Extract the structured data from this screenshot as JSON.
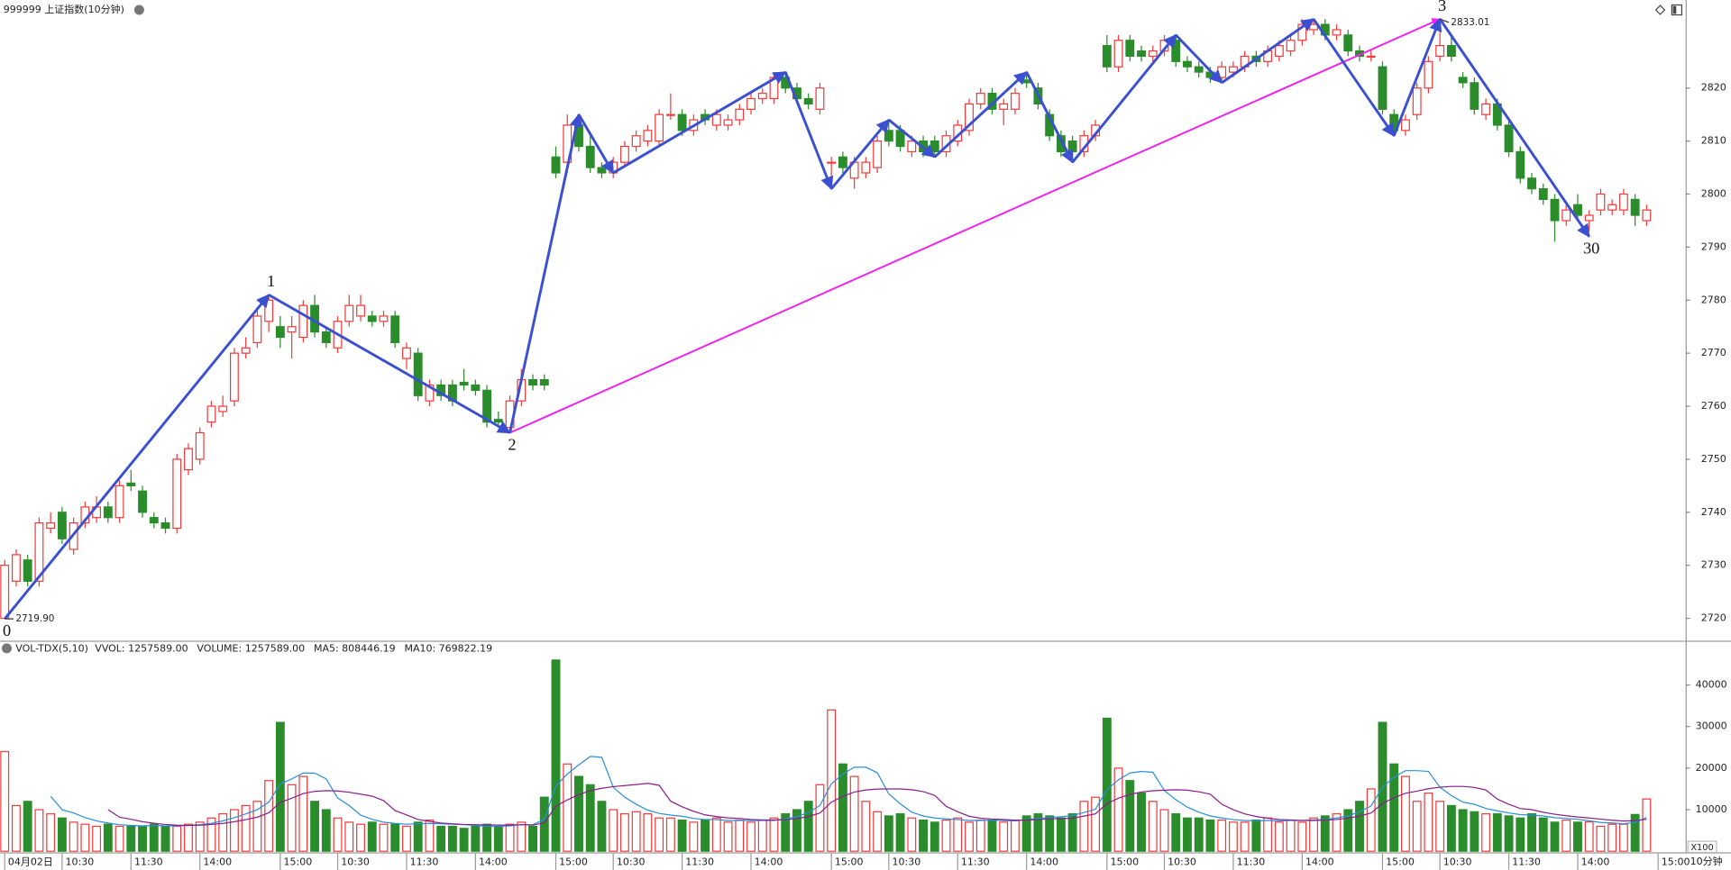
{
  "chart_data": [
    {
      "type": "candlestick",
      "title": "999999 上证指数(10分钟)",
      "up_color": "#f03c3c",
      "down_color": "#2a8c2a",
      "xlim": [
        -0.4,
        146.4
      ],
      "ylim": [
        2716,
        2836.6
      ],
      "yticks": [
        2720,
        2730,
        2740,
        2750,
        2760,
        2770,
        2780,
        2790,
        2800,
        2810,
        2820
      ],
      "ohlc": [
        [
          2720,
          2731,
          2719.9,
          2730
        ],
        [
          2727,
          2733,
          2726,
          2732
        ],
        [
          2731,
          2732,
          2726,
          2727
        ],
        [
          2727,
          2739,
          2726,
          2738
        ],
        [
          2737,
          2740,
          2736,
          2738
        ],
        [
          2740,
          2741,
          2734,
          2735
        ],
        [
          2733,
          2739,
          2732,
          2738
        ],
        [
          2738,
          2742,
          2737,
          2741
        ],
        [
          2739,
          2743,
          2738,
          2741
        ],
        [
          2741,
          2742,
          2738,
          2739
        ],
        [
          2739,
          2746,
          2738,
          2745
        ],
        [
          2745.5,
          2748,
          2744,
          2745
        ],
        [
          2744,
          2745,
          2739,
          2740
        ],
        [
          2739,
          2740,
          2737,
          2738
        ],
        [
          2738,
          2739,
          2736,
          2737
        ],
        [
          2737,
          2751,
          2736,
          2750
        ],
        [
          2748,
          2753,
          2747,
          2752
        ],
        [
          2750,
          2756,
          2749,
          2755
        ],
        [
          2757,
          2761,
          2756,
          2760
        ],
        [
          2759,
          2762,
          2758,
          2760
        ],
        [
          2761,
          2771,
          2760,
          2770
        ],
        [
          2770,
          2773,
          2769,
          2771
        ],
        [
          2772,
          2778,
          2771,
          2777
        ],
        [
          2776,
          2781,
          2774,
          2780
        ],
        [
          2775,
          2777,
          2771,
          2773
        ],
        [
          2774,
          2777,
          2769,
          2775
        ],
        [
          2773,
          2780,
          2772,
          2779
        ],
        [
          2779,
          2781,
          2773,
          2774
        ],
        [
          2774,
          2775,
          2771,
          2772
        ],
        [
          2771,
          2777,
          2770,
          2776
        ],
        [
          2776,
          2781,
          2775,
          2779
        ],
        [
          2777,
          2781,
          2776,
          2779
        ],
        [
          2777,
          2778,
          2775,
          2776
        ],
        [
          2776,
          2778,
          2775,
          2777
        ],
        [
          2777,
          2778,
          2771,
          2772
        ],
        [
          2769,
          2772,
          2767,
          2771
        ],
        [
          2770,
          2771,
          2761,
          2762
        ],
        [
          2761,
          2765,
          2760,
          2764
        ],
        [
          2764,
          2765,
          2761,
          2762
        ],
        [
          2764,
          2765,
          2760,
          2761
        ],
        [
          2764.5,
          2767,
          2763,
          2764
        ],
        [
          2764,
          2765,
          2762,
          2763
        ],
        [
          2763,
          2764,
          2756,
          2757
        ],
        [
          2757.5,
          2759,
          2756,
          2757
        ],
        [
          2756,
          2762,
          2755,
          2761
        ],
        [
          2761,
          2767,
          2760,
          2765
        ],
        [
          2765,
          2766,
          2763,
          2764
        ],
        [
          2765,
          2766,
          2763,
          2764
        ],
        [
          2807,
          2809,
          2803,
          2804
        ],
        [
          2806,
          2815,
          2804,
          2813
        ],
        [
          2813,
          2815,
          2808,
          2809
        ],
        [
          2809,
          2811,
          2804,
          2805
        ],
        [
          2805,
          2806,
          2803,
          2804
        ],
        [
          2804,
          2807,
          2803,
          2806
        ],
        [
          2806,
          2810,
          2805,
          2809
        ],
        [
          2809,
          2812,
          2808,
          2811
        ],
        [
          2810,
          2813,
          2809,
          2812
        ],
        [
          2810,
          2816,
          2809,
          2815
        ],
        [
          2815,
          2819,
          2814,
          2815
        ],
        [
          2815,
          2816,
          2811,
          2812
        ],
        [
          2812,
          2815,
          2811,
          2814
        ],
        [
          2815,
          2816,
          2813,
          2814
        ],
        [
          2813,
          2816,
          2812,
          2815
        ],
        [
          2813,
          2815,
          2812,
          2814
        ],
        [
          2814,
          2817,
          2813,
          2816
        ],
        [
          2816,
          2819,
          2815,
          2818
        ],
        [
          2818,
          2820,
          2817,
          2819
        ],
        [
          2818,
          2823,
          2817,
          2822
        ],
        [
          2822,
          2823,
          2819,
          2820
        ],
        [
          2820,
          2821,
          2817,
          2818
        ],
        [
          2818,
          2819,
          2816,
          2817
        ],
        [
          2816,
          2821,
          2815,
          2820
        ],
        [
          2806,
          2807,
          2801,
          2806
        ],
        [
          2807,
          2808,
          2804,
          2805
        ],
        [
          2803,
          2807,
          2801,
          2806
        ],
        [
          2804,
          2807,
          2803,
          2806
        ],
        [
          2805,
          2811,
          2804,
          2810
        ],
        [
          2812,
          2814,
          2809,
          2810
        ],
        [
          2812,
          2813,
          2808,
          2809
        ],
        [
          2808,
          2811,
          2807,
          2810
        ],
        [
          2810,
          2811,
          2807,
          2808
        ],
        [
          2810,
          2811,
          2807,
          2808
        ],
        [
          2808,
          2812,
          2807,
          2811
        ],
        [
          2810,
          2814,
          2809,
          2813
        ],
        [
          2812,
          2818,
          2811,
          2817
        ],
        [
          2817,
          2820,
          2816,
          2819
        ],
        [
          2819,
          2820,
          2815,
          2816
        ],
        [
          2816,
          2818,
          2813,
          2817
        ],
        [
          2816,
          2820,
          2815,
          2819
        ],
        [
          2821.5,
          2823,
          2820,
          2821
        ],
        [
          2820,
          2821,
          2816,
          2817
        ],
        [
          2815,
          2816,
          2810,
          2811
        ],
        [
          2811,
          2812,
          2807,
          2808
        ],
        [
          2810,
          2811,
          2806,
          2808
        ],
        [
          2808,
          2812,
          2807,
          2811
        ],
        [
          2811,
          2814,
          2810,
          2813
        ],
        [
          2828,
          2830,
          2823,
          2824
        ],
        [
          2824,
          2830,
          2823,
          2829
        ],
        [
          2829,
          2830,
          2825,
          2826
        ],
        [
          2827,
          2828,
          2825,
          2826
        ],
        [
          2826,
          2828,
          2825,
          2827
        ],
        [
          2827,
          2830,
          2826,
          2829
        ],
        [
          2829,
          2830,
          2824,
          2825
        ],
        [
          2825,
          2826,
          2823,
          2824
        ],
        [
          2824,
          2825,
          2822,
          2823
        ],
        [
          2823,
          2824,
          2821,
          2822
        ],
        [
          2822,
          2825,
          2821,
          2824
        ],
        [
          2823,
          2825,
          2822,
          2824
        ],
        [
          2824,
          2827,
          2823,
          2826
        ],
        [
          2826,
          2827,
          2824,
          2825
        ],
        [
          2825,
          2828,
          2824,
          2827
        ],
        [
          2826,
          2829,
          2825,
          2828
        ],
        [
          2827,
          2830,
          2826,
          2829
        ],
        [
          2829,
          2833,
          2828,
          2832
        ],
        [
          2831,
          2833,
          2830,
          2832
        ],
        [
          2832,
          2833,
          2829,
          2830
        ],
        [
          2830,
          2832,
          2829,
          2831
        ],
        [
          2830,
          2831,
          2826,
          2827
        ],
        [
          2827,
          2828,
          2825,
          2826
        ],
        [
          2826,
          2827,
          2825,
          2826
        ],
        [
          2824,
          2825,
          2815,
          2816
        ],
        [
          2815,
          2816,
          2811,
          2812
        ],
        [
          2812,
          2815,
          2811,
          2814
        ],
        [
          2815,
          2821,
          2814,
          2820
        ],
        [
          2820,
          2826,
          2819,
          2825
        ],
        [
          2826,
          2833.01,
          2825,
          2828
        ],
        [
          2828,
          2830,
          2825,
          2826
        ],
        [
          2822,
          2823,
          2820,
          2821
        ],
        [
          2821,
          2822,
          2815,
          2816
        ],
        [
          2815,
          2818,
          2814,
          2817
        ],
        [
          2817,
          2818,
          2812,
          2813
        ],
        [
          2813,
          2814,
          2807,
          2808
        ],
        [
          2808,
          2809,
          2802,
          2803
        ],
        [
          2803,
          2804,
          2800,
          2801
        ],
        [
          2801,
          2802,
          2798,
          2799
        ],
        [
          2799,
          2800,
          2791,
          2795
        ],
        [
          2795,
          2798,
          2794,
          2797
        ],
        [
          2798,
          2800,
          2795,
          2796
        ],
        [
          2795,
          2797,
          2793,
          2796
        ],
        [
          2797,
          2801,
          2796,
          2800
        ],
        [
          2797,
          2799,
          2796,
          2798
        ],
        [
          2797,
          2801,
          2796,
          2800
        ],
        [
          2799,
          2800,
          2794,
          2796
        ],
        [
          2795,
          2798,
          2794,
          2797
        ]
      ],
      "waves": {
        "color": "#3a50d0",
        "x": [
          0,
          23,
          44,
          50,
          53,
          68,
          72,
          77,
          81,
          89,
          93,
          102,
          106,
          114,
          121,
          125,
          138
        ],
        "y": [
          2719.9,
          2781,
          2755,
          2815,
          2804,
          2823,
          2801,
          2814,
          2807,
          2823,
          2806,
          2830,
          2821,
          2833,
          2811,
          2833.01,
          2792
        ]
      },
      "trend": {
        "color": "#f020f0",
        "x": [
          44,
          125
        ],
        "y": [
          2755,
          2833.01
        ]
      },
      "wave_labels": [
        {
          "label": "0",
          "x": 0,
          "y": 2719.9,
          "position": "below"
        },
        {
          "label": "1",
          "x": 23,
          "y": 2781,
          "position": "above"
        },
        {
          "label": "2",
          "x": 44,
          "y": 2755,
          "position": "below"
        },
        {
          "label": "3",
          "x": 125,
          "y": 2833.01,
          "position": "above"
        },
        {
          "label": "30",
          "x": 138,
          "y": 2792,
          "position": "below"
        }
      ],
      "extreme_labels": [
        {
          "value": 2719.9,
          "label": "2719.90",
          "x": 0
        },
        {
          "value": 2833.01,
          "label": "2833.01",
          "x": 125
        }
      ]
    },
    {
      "type": "bar",
      "indicator": "VOL-TDX(5,10)",
      "readouts": [
        {
          "text": "VVOL: 1257589.00",
          "color": "#222222"
        },
        {
          "text": "VOLUME: 1257589.00",
          "color": "#1a7fc9"
        },
        {
          "text": "MA5: 808446.19",
          "color": "#1a7fc9"
        },
        {
          "text": "MA10: 769822.19",
          "color": "#8a1e8a"
        }
      ],
      "ma": [
        {
          "period": 5,
          "color": "#2a8fd8"
        },
        {
          "period": 10,
          "color": "#8a1e8a"
        }
      ],
      "xlim": [
        -0.4,
        146.4
      ],
      "ylim": [
        0,
        50400
      ],
      "yticks": [
        10000,
        20000,
        30000,
        40000
      ],
      "unit_label": "X100",
      "values": [
        24000,
        11000,
        12000,
        10000,
        9000,
        8000,
        7000,
        6500,
        6000,
        6500,
        6000,
        6000,
        6000,
        6500,
        6000,
        6000,
        6500,
        7000,
        8000,
        9000,
        10000,
        11000,
        12000,
        17000,
        31000,
        16000,
        18000,
        12000,
        10000,
        8000,
        7000,
        6500,
        7000,
        6500,
        6500,
        6000,
        7000,
        7500,
        6000,
        6000,
        5500,
        6000,
        6500,
        6000,
        6500,
        7000,
        6000,
        13000,
        46000,
        21000,
        18000,
        16000,
        12000,
        10000,
        9000,
        9500,
        9000,
        8000,
        8000,
        7500,
        7000,
        7500,
        8000,
        7000,
        7500,
        7000,
        7500,
        8000,
        9000,
        10000,
        12000,
        16000,
        34000,
        21000,
        18000,
        12000,
        9500,
        8500,
        9000,
        8000,
        7500,
        7000,
        7500,
        8000,
        7000,
        7500,
        7500,
        7000,
        7500,
        8500,
        9000,
        8500,
        8000,
        9000,
        12000,
        13000,
        32000,
        20000,
        17000,
        14000,
        12000,
        10000,
        9000,
        8000,
        8000,
        7500,
        7500,
        7000,
        7000,
        7500,
        8000,
        7000,
        7500,
        7000,
        8000,
        8500,
        9000,
        10000,
        12000,
        15000,
        31000,
        21000,
        18000,
        12000,
        14000,
        12000,
        11000,
        10000,
        9500,
        9000,
        9000,
        8500,
        8000,
        9000,
        8000,
        7000,
        7500,
        7000,
        7059.9,
        6000,
        6500,
        6500,
        8846.42,
        12575.89
      ],
      "xticks": [
        {
          "value": 0,
          "label": "04月02日"
        },
        {
          "value": 5,
          "label": "10:30"
        },
        {
          "value": 11,
          "label": "11:30"
        },
        {
          "value": 17,
          "label": "14:00"
        },
        {
          "value": 24,
          "label": "15:00"
        },
        {
          "value": 29,
          "label": "10:30"
        },
        {
          "value": 35,
          "label": "11:30"
        },
        {
          "value": 41,
          "label": "14:00"
        },
        {
          "value": 48,
          "label": "15:00"
        },
        {
          "value": 53,
          "label": "10:30"
        },
        {
          "value": 59,
          "label": "11:30"
        },
        {
          "value": 65,
          "label": "14:00"
        },
        {
          "value": 72,
          "label": "15:00"
        },
        {
          "value": 77,
          "label": "10:30"
        },
        {
          "value": 83,
          "label": "11:30"
        },
        {
          "value": 89,
          "label": "14:00"
        },
        {
          "value": 96,
          "label": "15:00"
        },
        {
          "value": 101,
          "label": "10:30"
        },
        {
          "value": 107,
          "label": "11:30"
        },
        {
          "value": 113,
          "label": "14:00"
        },
        {
          "value": 120,
          "label": "15:00"
        },
        {
          "value": 125,
          "label": "10:30"
        },
        {
          "value": 131,
          "label": "11:30"
        },
        {
          "value": 137,
          "label": "14:00"
        },
        {
          "value": 144,
          "label": "15:00"
        }
      ],
      "period_label": "10分钟"
    }
  ]
}
